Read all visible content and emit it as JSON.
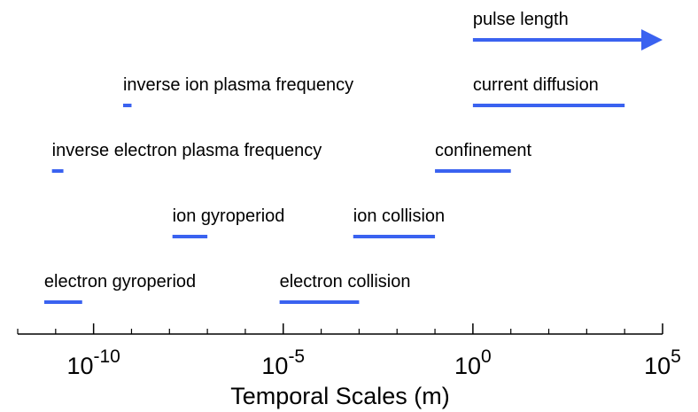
{
  "chart_data": {
    "type": "range",
    "xlabel": "Temporal Scales (m)",
    "log_x": true,
    "color": "#3a62f0",
    "xlim": [
      1e-12,
      100000.0
    ],
    "xticks": [
      {
        "value": 1e-10,
        "label": "10",
        "exponent": "-10"
      },
      {
        "value": 1e-05,
        "label": "10",
        "exponent": "-5"
      },
      {
        "value": 1,
        "label": "10",
        "exponent": "0"
      },
      {
        "value": 100000.0,
        "label": "10",
        "exponent": "5"
      }
    ],
    "minor_xticks": [
      1e-12,
      1e-11,
      1e-09,
      1e-08,
      1e-07,
      1e-06,
      0.0001,
      0.001,
      0.01,
      0.1,
      10,
      100,
      1000,
      10000
    ],
    "series": [
      {
        "name": "electron gyroperiod",
        "start": 5e-12,
        "end": 5e-11
      },
      {
        "name": "electron collision",
        "start": 8e-06,
        "end": 0.001
      },
      {
        "name": "ion gyroperiod",
        "start": 1.2e-08,
        "end": 1e-07
      },
      {
        "name": "ion collision",
        "start": 0.0007,
        "end": 0.1
      },
      {
        "name": "inverse electron plasma frequency",
        "start": 8e-12,
        "end": 1.6e-11
      },
      {
        "name": "confinement",
        "start": 0.1,
        "end": 10
      },
      {
        "name": "inverse ion plasma frequency",
        "start": 6e-10,
        "end": 1e-09
      },
      {
        "name": "current diffusion",
        "start": 1,
        "end": 10000
      },
      {
        "name": "pulse length",
        "start": 1,
        "end": 100000.0,
        "arrow": true
      }
    ]
  }
}
